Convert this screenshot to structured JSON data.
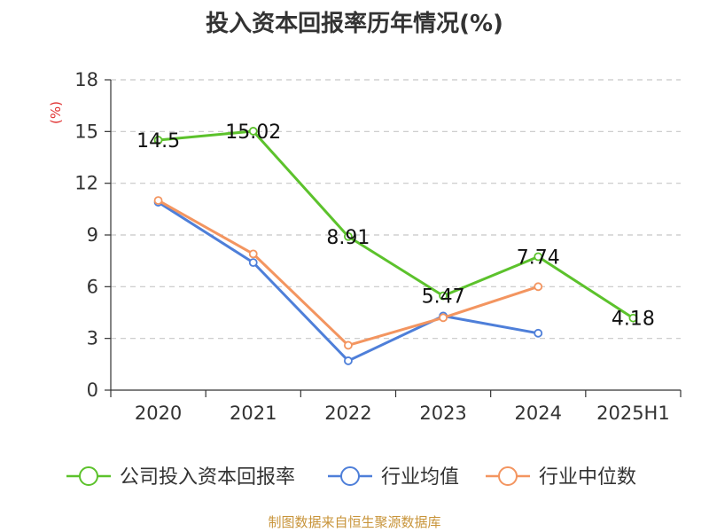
{
  "chart_data": {
    "type": "line",
    "title": "投入资本回报率历年情况(%)",
    "ylabel": "(%)",
    "categories": [
      "2020",
      "2021",
      "2022",
      "2023",
      "2024",
      "2025H1"
    ],
    "ylim": [
      0,
      18
    ],
    "yticks": [
      0,
      3,
      6,
      9,
      12,
      15,
      18
    ],
    "grid": true,
    "legend_position": "bottom",
    "series": [
      {
        "name": "公司投入资本回报率",
        "color": "#5cc22c",
        "values": [
          14.5,
          15.02,
          8.91,
          5.47,
          7.74,
          4.18
        ],
        "labels": [
          "14.5",
          "15.02",
          "8.91",
          "5.47",
          "7.74",
          "4.18"
        ]
      },
      {
        "name": "行业均值",
        "color": "#4e7fd9",
        "values": [
          10.9,
          7.4,
          1.7,
          4.3,
          3.3,
          null
        ]
      },
      {
        "name": "行业中位数",
        "color": "#f39560",
        "values": [
          11.0,
          7.9,
          2.6,
          4.2,
          6.0,
          null
        ]
      }
    ]
  },
  "source_text": "制图数据来自恒生聚源数据库"
}
